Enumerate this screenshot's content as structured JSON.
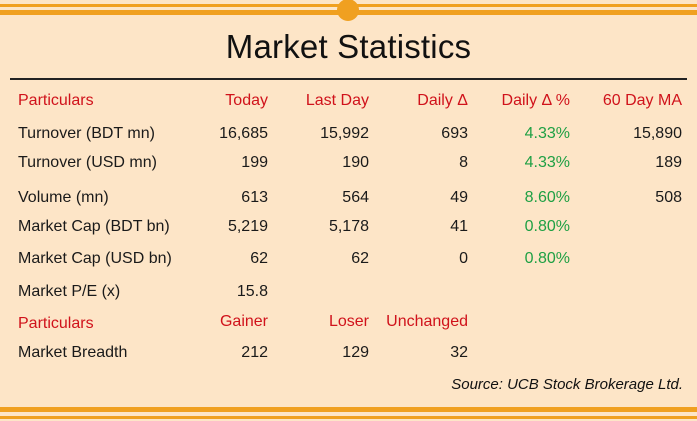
{
  "title": "Market Statistics",
  "headers": {
    "particulars": "Particulars",
    "today": "Today",
    "last_day": "Last Day",
    "daily_delta": "Daily Δ",
    "daily_delta_pct": "Daily Δ %",
    "ma60": "60 Day MA"
  },
  "rows": [
    {
      "label": "Turnover (BDT mn)",
      "today": "16,685",
      "last_day": "15,992",
      "delta": "693",
      "delta_pct": "4.33%",
      "ma60": "15,890"
    },
    {
      "label": "Turnover (USD mn)",
      "today": "199",
      "last_day": "190",
      "delta": "8",
      "delta_pct": "4.33%",
      "ma60": "189"
    },
    {
      "label": "Volume (mn)",
      "today": "613",
      "last_day": "564",
      "delta": "49",
      "delta_pct": "8.60%",
      "ma60": "508"
    },
    {
      "label": "Market Cap (BDT bn)",
      "today": "5,219",
      "last_day": "5,178",
      "delta": "41",
      "delta_pct": "0.80%",
      "ma60": ""
    },
    {
      "label": "Market Cap (USD bn)",
      "today": "62",
      "last_day": "62",
      "delta": "0",
      "delta_pct": "0.80%",
      "ma60": ""
    },
    {
      "label": "Market P/E (x)",
      "today": "15.8",
      "last_day": "",
      "delta": "",
      "delta_pct": "",
      "ma60": ""
    }
  ],
  "breadth_headers": {
    "particulars": "Particulars",
    "gainer": "Gainer",
    "loser": "Loser",
    "unchanged": "Unchanged"
  },
  "breadth": {
    "label": "Market Breadth",
    "gainer": "212",
    "loser": "129",
    "unchanged": "32"
  },
  "source": "Source: UCB Stock Brokerage Ltd.",
  "colors": {
    "accent": "#f0a020",
    "background": "#fde5c7",
    "header": "#d0121b",
    "positive": "#1fa044"
  }
}
